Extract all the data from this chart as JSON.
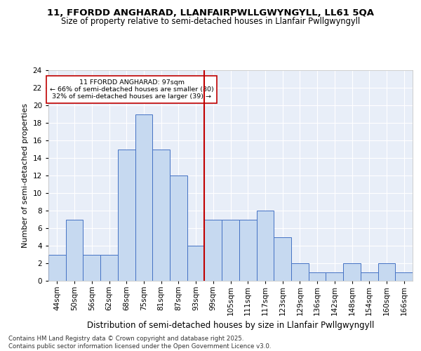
{
  "title1": "11, FFORDD ANGHARAD, LLANFAIRPWLLGWYNGYLL, LL61 5QA",
  "title2": "Size of property relative to semi-detached houses in Llanfair Pwllgwyngyll",
  "xlabel": "Distribution of semi-detached houses by size in Llanfair Pwllgwyngyll",
  "ylabel": "Number of semi-detached properties",
  "categories": [
    "44sqm",
    "50sqm",
    "56sqm",
    "62sqm",
    "68sqm",
    "75sqm",
    "81sqm",
    "87sqm",
    "93sqm",
    "99sqm",
    "105sqm",
    "111sqm",
    "117sqm",
    "123sqm",
    "129sqm",
    "136sqm",
    "142sqm",
    "148sqm",
    "154sqm",
    "160sqm",
    "166sqm"
  ],
  "values": [
    3,
    7,
    3,
    3,
    15,
    19,
    15,
    12,
    4,
    7,
    7,
    7,
    8,
    5,
    2,
    1,
    1,
    2,
    1,
    2,
    1
  ],
  "bar_color": "#c6d9f0",
  "bar_edge_color": "#4472c4",
  "subject_bin_idx": 9,
  "subject_label": "11 FFORDD ANGHARAD: 97sqm",
  "pct_smaller": "66% of semi-detached houses are smaller (80)",
  "pct_larger": "32% of semi-detached houses are larger (39)",
  "annotation_box_color": "#c00000",
  "ylim": [
    0,
    24
  ],
  "yticks": [
    0,
    2,
    4,
    6,
    8,
    10,
    12,
    14,
    16,
    18,
    20,
    22,
    24
  ],
  "footer": "Contains HM Land Registry data © Crown copyright and database right 2025.\nContains public sector information licensed under the Open Government Licence v3.0.",
  "bg_color": "#e8eef8",
  "grid_color": "#ffffff"
}
